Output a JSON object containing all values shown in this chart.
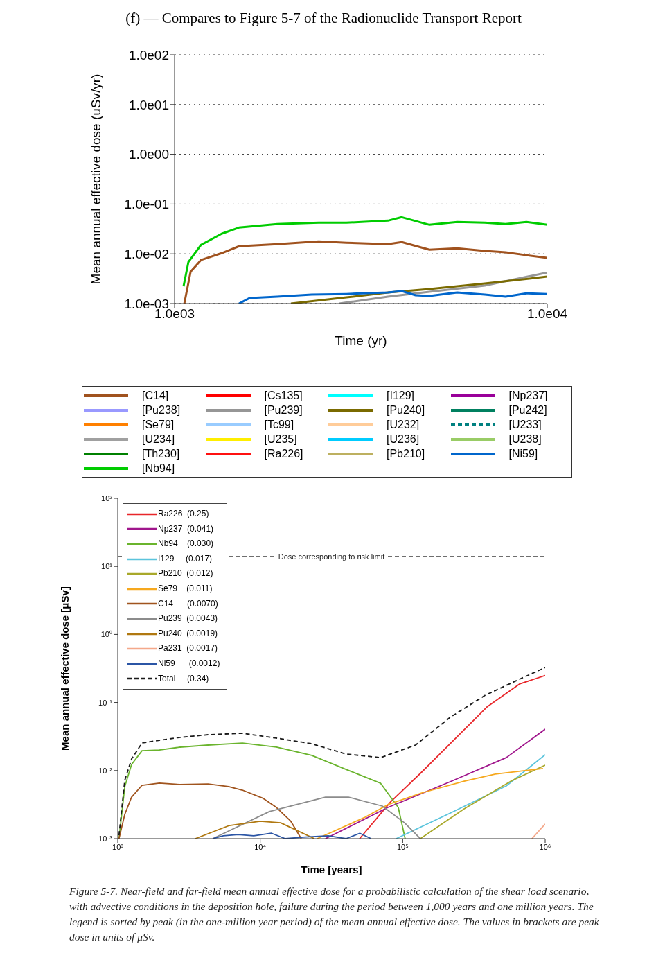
{
  "chart_data": [
    {
      "type": "line",
      "title": "(f) — Compares to Figure 5-7 of the Radionuclide Transport Report",
      "xlabel": "Time (yr)",
      "ylabel": "Mean annual effective dose (uSv/yr)",
      "log": "xy",
      "grid": "y",
      "legend": "bottom",
      "xlim": [
        1000,
        10000
      ],
      "xticks": [
        {
          "value": 1000,
          "label": "1.0e03"
        },
        {
          "value": 10000,
          "label": "1.0e04"
        }
      ],
      "ylim": [
        0.001,
        100
      ],
      "yticks": [
        {
          "value": 0.001,
          "label": "1.0e-03"
        },
        {
          "value": 0.01,
          "label": "1.0e-02"
        },
        {
          "value": 0.1,
          "label": "1.0e-01"
        },
        {
          "value": 1,
          "label": "1.0e00"
        },
        {
          "value": 10,
          "label": "1.0e01"
        },
        {
          "value": 100,
          "label": "1.0e02"
        }
      ],
      "series": [
        {
          "name": "[C14]",
          "color": "#a0521e",
          "x": [
            1062,
            1104,
            1177,
            1337,
            1489,
            1885,
            2437,
            2891,
            3736,
            4070,
            4830,
            5730,
            6800,
            7730,
            8790,
            10000
          ],
          "values": [
            0.001,
            0.00436,
            0.0075,
            0.0103,
            0.0142,
            0.0156,
            0.0178,
            0.0167,
            0.0156,
            0.0172,
            0.0121,
            0.0129,
            0.0114,
            0.0107,
            0.0094,
            0.0083
          ]
        },
        {
          "name": "[Cs135]",
          "color": "#ff0000"
        },
        {
          "name": "[I129]",
          "color": "#00ffff"
        },
        {
          "name": "[Np237]",
          "color": "#990099"
        },
        {
          "name": "[Pu238]",
          "color": "#9999ff"
        },
        {
          "name": "[Pu239]",
          "color": "#969696",
          "x": [
            2768,
            3736,
            4830,
            6800,
            10000
          ],
          "values": [
            0.001,
            0.00138,
            0.00172,
            0.0023,
            0.00422
          ]
        },
        {
          "name": "[Pu240]",
          "color": "#7a6a00",
          "x": [
            2052,
            2891,
            3736,
            4830,
            6800,
            10000
          ],
          "values": [
            0.001,
            0.00133,
            0.00167,
            0.00196,
            0.00253,
            0.00348
          ]
        },
        {
          "name": "[Pu242]",
          "color": "#008060"
        },
        {
          "name": "[Se79]",
          "color": "#ff8000"
        },
        {
          "name": "[Tc99]",
          "color": "#99ccff"
        },
        {
          "name": "[U232]",
          "color": "#ffcc99"
        },
        {
          "name": "[U233]",
          "color": "#008080",
          "line_style": "dashed"
        },
        {
          "name": "[U234]",
          "color": "#a0a0a0"
        },
        {
          "name": "[U235]",
          "color": "#ffee00"
        },
        {
          "name": "[U236]",
          "color": "#00ccff"
        },
        {
          "name": "[U238]",
          "color": "#99cc66"
        },
        {
          "name": "[Th230]",
          "color": "#008000"
        },
        {
          "name": "[Ra226]",
          "color": "#ff1010"
        },
        {
          "name": "[Pb210]",
          "color": "#bdb060"
        },
        {
          "name": "[Ni59]",
          "color": "#0066cc",
          "x": [
            1489,
            1588,
            1885,
            2333,
            2891,
            3736,
            4070,
            4435,
            4830,
            5730,
            6800,
            7730,
            8790,
            10000
          ],
          "values": [
            0.001,
            0.00129,
            0.00138,
            0.00152,
            0.00156,
            0.00167,
            0.00178,
            0.00147,
            0.00142,
            0.00167,
            0.00152,
            0.00138,
            0.00161,
            0.00156
          ]
        },
        {
          "name": "[Nb94]",
          "color": "#00cc00",
          "x": [
            1057,
            1089,
            1177,
            1337,
            1489,
            1885,
            2437,
            2891,
            3736,
            4070,
            4830,
            5730,
            6800,
            7730,
            8790,
            10000
          ],
          "values": [
            0.00222,
            0.0068,
            0.0151,
            0.0253,
            0.0337,
            0.0396,
            0.0422,
            0.0422,
            0.0464,
            0.0545,
            0.0383,
            0.0436,
            0.0422,
            0.0396,
            0.0436,
            0.0383
          ]
        }
      ]
    },
    {
      "type": "line",
      "xlabel": "Time [years]",
      "ylabel": "Mean annual effective dose [μSv]",
      "log": "xy",
      "legend": "top left",
      "xlim": [
        1000,
        1000000
      ],
      "xticks": [
        {
          "value": 1000,
          "label": "10³"
        },
        {
          "value": 10000,
          "label": "10⁴"
        },
        {
          "value": 100000,
          "label": "10⁵"
        },
        {
          "value": 1000000,
          "label": "10⁶"
        }
      ],
      "ylim": [
        0.001,
        100
      ],
      "yticks": [
        {
          "value": 0.001,
          "label": "10⁻³"
        },
        {
          "value": 0.01,
          "label": "10⁻²"
        },
        {
          "value": 0.1,
          "label": "10⁻¹"
        },
        {
          "value": 1,
          "label": "10⁰"
        },
        {
          "value": 10,
          "label": "10¹"
        },
        {
          "value": 100,
          "label": "10²"
        }
      ],
      "ref_lines": [
        {
          "axis": "y",
          "value": 14,
          "label": "Dose corresponding to risk limit",
          "line_style": "dashed",
          "color": "#222222"
        }
      ],
      "annotations": [
        "Figure 5-7. Near-field and far-field mean annual effective dose for a probabilistic calculation of the shear load scenario, with advective conditions in the deposition hole, failure during the period between 1,000 years and one million years. The legend is sorted by peak (in the one-million year period) of the mean annual effective dose. The values in brackets are peak dose in units of μSv."
      ],
      "series": [
        {
          "name": "Ra226  (0.25)",
          "color": "#e8262a",
          "x": [
            49800,
            82300,
            136000,
            215000,
            390000,
            660000,
            1000000
          ],
          "values": [
            0.001,
            0.00347,
            0.0095,
            0.0248,
            0.086,
            0.187,
            0.25
          ]
        },
        {
          "name": "Np237  (0.041)",
          "color": "#a0168c",
          "x": [
            28700,
            78700,
            215000,
            533000,
            1000000
          ],
          "values": [
            0.001,
            0.00287,
            0.00684,
            0.0155,
            0.0406
          ]
        },
        {
          "name": "Nb94    (0.030)",
          "color": "#6ab42d",
          "x": [
            1020,
            1120,
            1250,
            1480,
            1960,
            2740,
            4300,
            7500,
            13000,
            23000,
            40000,
            70000,
            93100,
            104000
          ],
          "values": [
            0.001,
            0.0058,
            0.0123,
            0.0196,
            0.0201,
            0.0221,
            0.0237,
            0.0254,
            0.0221,
            0.0167,
            0.0104,
            0.0065,
            0.00287,
            0.001
          ]
        },
        {
          "name": "I129     (0.017)",
          "color": "#5bc4dc",
          "x": [
            90000,
            215000,
            533000,
            1000000
          ],
          "values": [
            0.001,
            0.00237,
            0.00594,
            0.0171
          ]
        },
        {
          "name": "Pb210  (0.012)",
          "color": "#a8a82a",
          "x": [
            133000,
            270000,
            590000,
            1000000
          ],
          "values": [
            0.001,
            0.00274,
            0.0072,
            0.012
          ]
        },
        {
          "name": "Se79    (0.011)",
          "color": "#f6a81e",
          "x": [
            25100,
            54500,
            78700,
            136000,
            270000,
            447000,
            966000
          ],
          "values": [
            0.001,
            0.00207,
            0.00316,
            0.0047,
            0.007,
            0.0089,
            0.0107
          ]
        },
        {
          "name": "C14      (0.0070)",
          "color": "#a0541e",
          "x": [
            1020,
            1120,
            1250,
            1480,
            1960,
            2740,
            4300,
            5990,
            7500,
            10500,
            13000,
            16400,
            19400
          ],
          "values": [
            0.001,
            0.00227,
            0.00408,
            0.00608,
            0.00653,
            0.00623,
            0.00637,
            0.00583,
            0.00516,
            0.0039,
            0.00287,
            0.0018,
            0.001
          ]
        },
        {
          "name": "Pu239  (0.0043)",
          "color": "#8c8c8c",
          "x": [
            4640,
            11600,
            28700,
            41600,
            71900,
            103000,
            133000
          ],
          "values": [
            0.001,
            0.0025,
            0.00408,
            0.00408,
            0.00301,
            0.00171,
            0.001
          ]
        },
        {
          "name": "Pu240  (0.0019)",
          "color": "#b07810",
          "x": [
            3500,
            6070,
            10000,
            13900,
            24000
          ],
          "values": [
            0.001,
            0.00156,
            0.0018,
            0.00171,
            0.001
          ]
        },
        {
          "name": "Pa231  (0.0017)",
          "color": "#f4a88a",
          "x": [
            807000,
            1000000
          ],
          "values": [
            0.001,
            0.00164
          ]
        },
        {
          "name": "Ni59      (0.0012)",
          "color": "#2b55a5",
          "x": [
            4640,
            5500,
            7000,
            9000,
            12000,
            15000,
            20000,
            30000,
            40000,
            50000,
            60000
          ],
          "values": [
            0.001,
            0.0011,
            0.00115,
            0.0011,
            0.0012,
            0.001,
            0.00105,
            0.0011,
            0.001,
            0.0012,
            0.001
          ]
        },
        {
          "name": "Total     (0.34)",
          "color": "#1a1a1a",
          "line_style": "dashed",
          "x": [
            1020,
            1120,
            1250,
            1480,
            1960,
            2740,
            4300,
            7500,
            13000,
            23000,
            40000,
            70000,
            123000,
            215000,
            380000,
            660000,
            1000000
          ],
          "values": [
            0.00112,
            0.0072,
            0.0148,
            0.0254,
            0.0279,
            0.0307,
            0.0337,
            0.0353,
            0.03,
            0.0248,
            0.0175,
            0.0155,
            0.0237,
            0.0605,
            0.128,
            0.22,
            0.327
          ]
        }
      ]
    }
  ]
}
